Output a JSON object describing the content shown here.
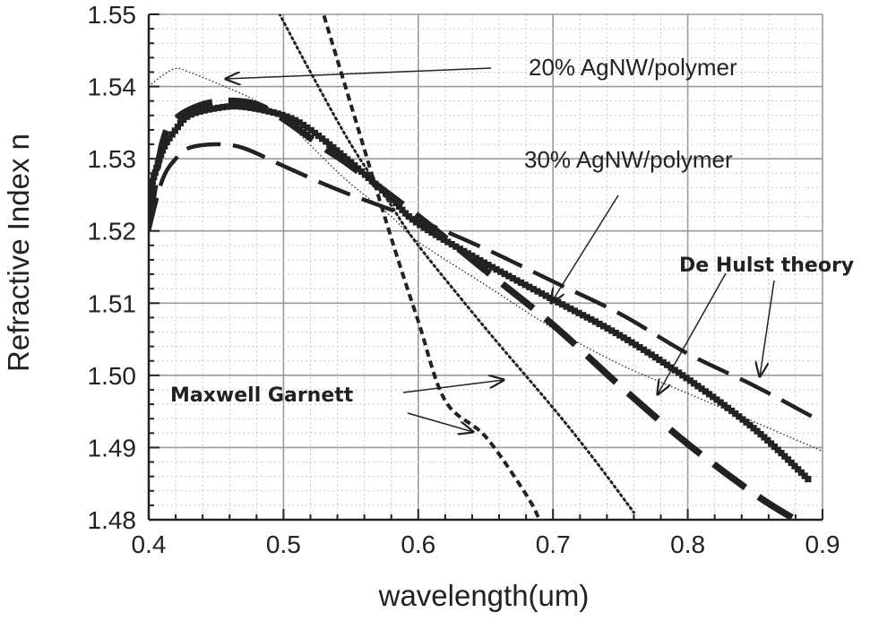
{
  "chart_data": {
    "type": "line",
    "title": "",
    "xlabel": "wavelength(um)",
    "ylabel": "Refractive Index n",
    "xlim": [
      0.4,
      0.9
    ],
    "ylim": [
      1.48,
      1.55
    ],
    "x_ticks": [
      "0.4",
      "0.5",
      "0.6",
      "0.7",
      "0.8",
      "0.9"
    ],
    "y_ticks": [
      "1.48",
      "1.49",
      "1.50",
      "1.51",
      "1.52",
      "1.53",
      "1.54",
      "1.55"
    ],
    "grid": true,
    "series": [
      {
        "name": "20% AgNW/polymer",
        "style": "thin-dotted",
        "x": [
          0.4,
          0.41,
          0.42,
          0.43,
          0.45,
          0.48,
          0.5,
          0.53,
          0.55,
          0.58,
          0.6,
          0.65,
          0.7,
          0.75,
          0.8,
          0.85,
          0.9
        ],
        "y": [
          1.54,
          1.5415,
          1.5425,
          1.542,
          1.5405,
          1.538,
          1.5355,
          1.53,
          1.5265,
          1.522,
          1.5185,
          1.5125,
          1.5065,
          1.5015,
          1.4975,
          1.4935,
          1.4895
        ]
      },
      {
        "name": "30% AgNW/polymer",
        "style": "thick-square-markers",
        "x": [
          0.4,
          0.41,
          0.42,
          0.43,
          0.45,
          0.47,
          0.5,
          0.52,
          0.55,
          0.58,
          0.6,
          0.65,
          0.7,
          0.75,
          0.8,
          0.85,
          0.89
        ],
        "y": [
          1.525,
          1.531,
          1.534,
          1.536,
          1.537,
          1.5372,
          1.536,
          1.534,
          1.5295,
          1.5245,
          1.521,
          1.5155,
          1.5105,
          1.5055,
          1.4995,
          1.4925,
          1.4855
        ]
      },
      {
        "name": "De Hulst theory",
        "style": "long-dash",
        "x": [
          0.4,
          0.41,
          0.42,
          0.43,
          0.45,
          0.47,
          0.5,
          0.53,
          0.55,
          0.6,
          0.65,
          0.7,
          0.75,
          0.8,
          0.85,
          0.9
        ],
        "y": [
          1.52,
          1.527,
          1.53,
          1.5315,
          1.532,
          1.5315,
          1.529,
          1.5265,
          1.525,
          1.5215,
          1.5175,
          1.513,
          1.5085,
          1.503,
          1.4985,
          1.4935
        ]
      },
      {
        "name": "De Hulst theory",
        "style": "extra-thick-dash",
        "x": [
          0.4,
          0.41,
          0.42,
          0.44,
          0.46,
          0.48,
          0.5,
          0.53,
          0.55,
          0.6,
          0.65,
          0.7,
          0.75,
          0.8,
          0.85,
          0.88
        ],
        "y": [
          1.521,
          1.532,
          1.5355,
          1.5375,
          1.538,
          1.5375,
          1.5355,
          1.5315,
          1.529,
          1.522,
          1.5145,
          1.507,
          1.4985,
          1.4905,
          1.4835,
          1.48
        ]
      },
      {
        "name": "Maxwell Garnett",
        "style": "dotted",
        "x": [
          0.48,
          0.5,
          0.52,
          0.55,
          0.58,
          0.6,
          0.65,
          0.7,
          0.73,
          0.76
        ],
        "y": [
          1.556,
          1.549,
          1.542,
          1.532,
          1.5235,
          1.518,
          1.5065,
          1.4955,
          1.4885,
          1.481
        ]
      },
      {
        "name": "Maxwell Garnett",
        "style": "short-dash",
        "x": [
          0.52,
          0.55,
          0.58,
          0.6,
          0.62,
          0.65,
          0.68,
          0.69
        ],
        "y": [
          1.556,
          1.5375,
          1.519,
          1.5075,
          1.4965,
          1.4915,
          1.4835,
          1.48
        ]
      }
    ],
    "annotations": [
      {
        "text": "20% AgNW/polymer",
        "weight": "normal"
      },
      {
        "text": "30% AgNW/polymer",
        "weight": "normal"
      },
      {
        "text": "De Hulst theory",
        "weight": "bold"
      },
      {
        "text": "Maxwell Garnett",
        "weight": "bold"
      }
    ]
  }
}
